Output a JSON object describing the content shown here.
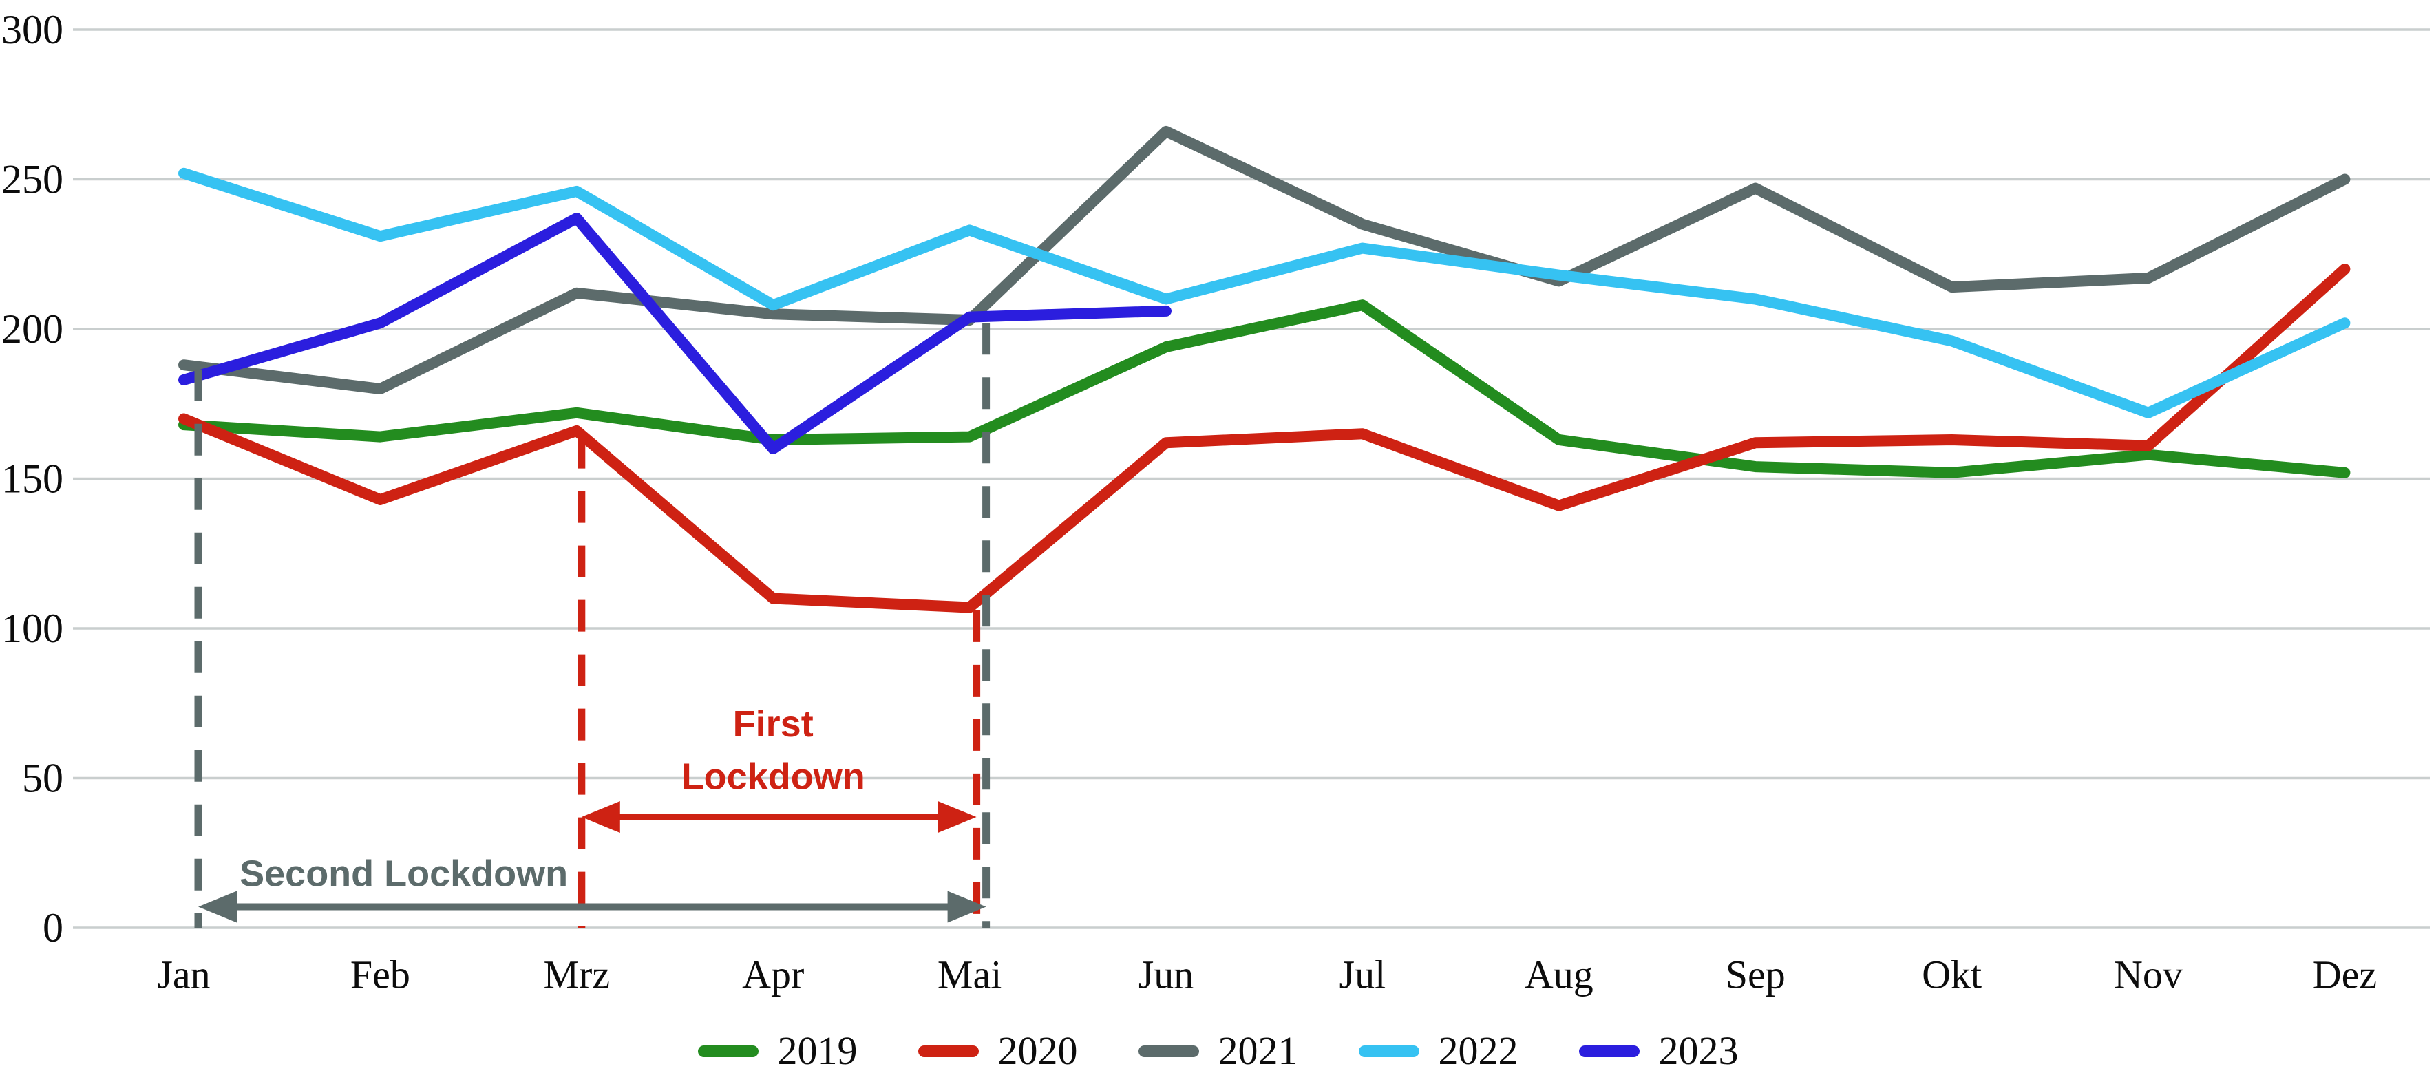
{
  "chart_data": {
    "type": "line",
    "title": "",
    "xlabel": "",
    "ylabel": "",
    "categories": [
      "Jan",
      "Feb",
      "Mrz",
      "Apr",
      "Mai",
      "Jun",
      "Jul",
      "Aug",
      "Sep",
      "Okt",
      "Nov",
      "Dez"
    ],
    "yticks": [
      0,
      50,
      100,
      150,
      200,
      250,
      300
    ],
    "ylim": [
      0,
      300
    ],
    "grid": "horizontal",
    "gridline_color": "#c9cece",
    "axis_text_color": "#0c0c0c",
    "legend_position": "bottom-center",
    "series": [
      {
        "name": "2019",
        "color": "#238c1f",
        "values": [
          168,
          164,
          172,
          163,
          164,
          194,
          208,
          163,
          154,
          152,
          158,
          152
        ]
      },
      {
        "name": "2020",
        "color": "#ce2213",
        "values": [
          170,
          143,
          166,
          110,
          107,
          162,
          165,
          141,
          162,
          163,
          161,
          220
        ]
      },
      {
        "name": "2021",
        "color": "#5c6b6b",
        "values": [
          188,
          180,
          212,
          205,
          203,
          266,
          235,
          216,
          247,
          214,
          217,
          250
        ]
      },
      {
        "name": "2022",
        "color": "#36c2f2",
        "values": [
          252,
          231,
          246,
          208,
          233,
          210,
          227,
          218,
          210,
          196,
          172,
          202
        ]
      },
      {
        "name": "2023",
        "color": "#2b1ede",
        "values": [
          183,
          202,
          237,
          160,
          204,
          206
        ]
      }
    ],
    "annotations": [
      {
        "id": "first-lockdown",
        "label": "First Lockdown",
        "label_lines": [
          "First",
          "Lockdown"
        ],
        "color": "#ce2213",
        "from_month_index": 2,
        "to_month_index": 4,
        "dashed_lines": [
          {
            "month_index": 2,
            "x_offset": 7,
            "top_value": 164
          },
          {
            "month_index": 4,
            "x_offset": 10,
            "top_value": 106
          }
        ],
        "arrow_value": 37,
        "label_center_month": 3.0,
        "label_values": [
          68,
          50.5
        ]
      },
      {
        "id": "second-lockdown",
        "label": "Second Lockdown",
        "label_lines": [
          "Second Lockdown"
        ],
        "color": "#5c6b6b",
        "from_month_index": 0,
        "to_month_index": 4,
        "dashed_lines": [
          {
            "month_index": 0,
            "x_offset": 21,
            "top_value": 186.5
          },
          {
            "month_index": 4,
            "x_offset": 24,
            "top_value": 202
          }
        ],
        "arrow_value": 7,
        "label_center_month": 1.12,
        "label_values": [
          18
        ]
      }
    ]
  }
}
